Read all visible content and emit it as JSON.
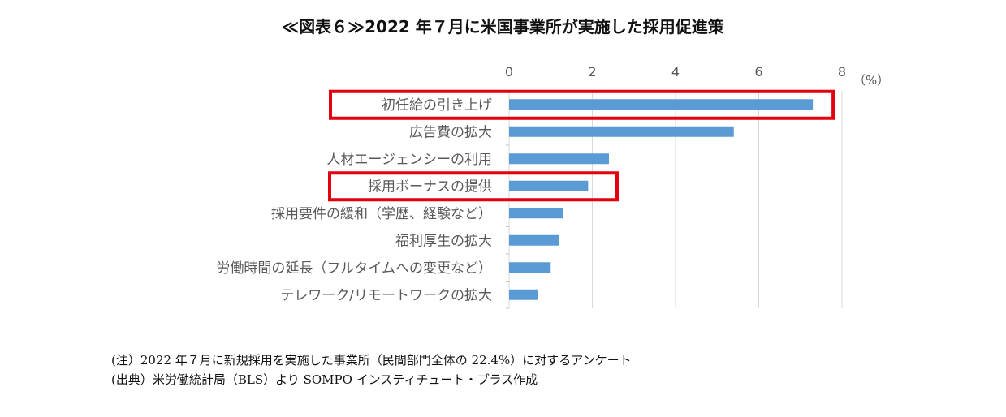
{
  "title": "≪図表６≫2022 年７月に米国事業所が実施した採用促進策",
  "chart_data": {
    "type": "bar",
    "orientation": "horizontal",
    "unit": "（%）",
    "xlim": [
      0,
      8
    ],
    "ticks": [
      "0",
      "2",
      "4",
      "6",
      "8"
    ],
    "grid": true,
    "bar_color": "#5B9BD5",
    "highlight_color": "#E3000F",
    "categories": [
      "初任給の引き上げ",
      "広告費の拡大",
      "人材エージェンシーの利用",
      "採用ボーナスの提供",
      "採用要件の緩和（学歴、経験など）",
      "福利厚生の拡大",
      "労働時間の延長（フルタイムへの変更など）",
      "テレワーク/リモートワークの拡大"
    ],
    "values": [
      7.3,
      5.4,
      2.4,
      1.9,
      1.3,
      1.2,
      1.0,
      0.7
    ],
    "highlighted": [
      "初任給の引き上げ",
      "採用ボーナスの提供"
    ]
  },
  "notes": [
    "(注）2022 年７月に新規採用を実施した事業所（民間部門全体の 22.4%）に対するアンケート",
    "(出典）米労働統計局（BLS）より SOMPO インスティチュート・プラス作成"
  ]
}
